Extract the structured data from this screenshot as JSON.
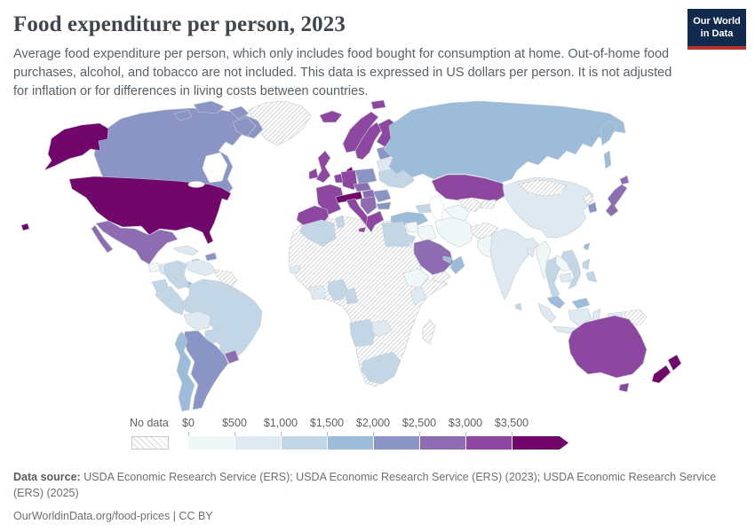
{
  "header": {
    "title": "Food expenditure per person, 2023",
    "subtitle": "Average food expenditure per person, which only includes food bought for consumption at home. Out-of-home food purchases, alcohol, and tobacco are not included. This data is expressed in US dollars per person. It is not adjusted for inflation or for differences in living costs between countries.",
    "logo": {
      "line1": "Our World",
      "line2": "in Data"
    }
  },
  "legend": {
    "no_data_label": "No data",
    "tick_labels": [
      "$0",
      "$500",
      "$1,000",
      "$1,500",
      "$2,000",
      "$2,500",
      "$3,000",
      "$3,500"
    ],
    "bin_ranges": [
      "$0–$500",
      "$500–$1,000",
      "$1,000–$1,500",
      "$1,500–$2,000",
      "$2,000–$2,500",
      "$2,500–$3,000",
      "$3,000–$3,500",
      "$3,500+"
    ],
    "bin_colors": [
      "#f0f7f7",
      "#dfe9f1",
      "#c2d6e6",
      "#9dbcda",
      "#8b95c5",
      "#8d6cb2",
      "#8d47a0",
      "#71066b"
    ]
  },
  "footer": {
    "source_label": "Data source:",
    "source_text": " USDA Economic Research Service (ERS); USDA Economic Research Service (ERS) (2023); USDA Economic Research Service (ERS) (2025)",
    "note": "OurWorldinData.org/food-prices | CC BY"
  },
  "chart_data": {
    "type": "choropleth",
    "title": "Food expenditure per person, 2023",
    "unit": "US dollars per person",
    "no_data_style": "gray diagonal hatch",
    "regions": {
      "united-states": "$3,500+",
      "canada": "$2,000–$2,500",
      "mexico": "$2,500–$3,000",
      "greenland": "no-data",
      "guatemala": "$0–$500",
      "honduras-nicaragua": "$500–$1,000",
      "costa-rica-panama": "$1,500–$2,000",
      "cuba": "$500–$1,000",
      "hispaniola": "$2,000–$2,500",
      "jamaica": "$1,000–$1,500",
      "colombia": "$1,000–$1,500",
      "venezuela": "$500–$1,000",
      "guyanas": "no-data",
      "ecuador": "$1,000–$1,500",
      "peru": "$1,000–$1,500",
      "brazil": "$1,000–$1,500",
      "bolivia": "$500–$1,000",
      "paraguay": "$1,000–$1,500",
      "uruguay": "$2,500–$3,000",
      "argentina": "$2,000–$2,500",
      "chile": "$1,500–$2,000",
      "iceland": "$3,000–$3,500",
      "svalbard": "$3,000–$3,500",
      "norway": "$3,000–$3,500",
      "sweden": "$3,000–$3,500",
      "finland": "$3,000–$3,500",
      "denmark": "$3,500+",
      "united-kingdom": "$3,000–$3,500",
      "ireland": "$3,000–$3,500",
      "france": "$3,000–$3,500",
      "germany": "$3,000–$3,500",
      "benelux": "$3,000–$3,500",
      "switzerland-austria": "$3,500+",
      "italy": "$3,000–$3,500",
      "spain-portugal": "$3,000–$3,500",
      "poland": "$2,000–$2,500",
      "czechia-slovakia": "$2,500–$3,000",
      "hungary": "$2,500–$3,000",
      "balkans": "$2,500–$3,000",
      "romania": "$2,000–$2,500",
      "bulgaria": "$2,000–$2,500",
      "greece": "$3,000–$3,500",
      "baltics": "$2,000–$2,500",
      "belarus": "$500–$1,000",
      "ukraine": "$1,000–$1,500",
      "russia": "$1,500–$2,000",
      "kazakhstan": "$3,000–$3,500",
      "caucasus": "$1,000–$1,500",
      "turkey": "$1,500–$2,000",
      "syria": "$0–$500",
      "iraq": "$0–$500",
      "israel": "$3,500+",
      "jordan": "$1,000–$1,500",
      "saudi-arabia": "$2,500–$3,000",
      "yemen": "no-data",
      "oman": "$1,500–$2,000",
      "uae": "$1,500–$2,000",
      "iran": "$0–$500",
      "afghanistan": "no-data",
      "pakistan": "$0–$500",
      "turkmenistan": "$0–$500",
      "uzbekistan": "no-data",
      "tajikistan-kyrgyzstan": "no-data",
      "india": "$500–$1,000",
      "bangladesh": "$500–$1,000",
      "sri-lanka": "$1,000–$1,500",
      "china": "$500–$1,000",
      "mongolia": "no-data",
      "north-korea": "no-data",
      "south-korea": "$2,000–$2,500",
      "japan": "$2,500–$3,000",
      "myanmar": "$0–$500",
      "thailand": "$1,000–$1,500",
      "laos": "$0–$500",
      "cambodia": "$500–$1,000",
      "vietnam": "$1,000–$1,500",
      "malaysia": "$1,500–$2,000",
      "indonesia": "$500–$1,000",
      "philippines": "$1,000–$1,500",
      "taiwan": "$1,500–$2,000",
      "papua-new-guinea": "no-data",
      "australia": "$3,000–$3,500",
      "new-zealand": "$3,500+",
      "africa-other": "no-data",
      "madagascar": "no-data",
      "algeria": "$1,000–$1,500",
      "tunisia": "$1,000–$1,500",
      "egypt": "$1,000–$1,500",
      "senegal": "$500–$1,000",
      "ghana-cote-divoire": "$500–$1,000",
      "nigeria": "$1,000–$1,500",
      "cameroon": "$1,000–$1,500",
      "angola": "$1,000–$1,500",
      "zambia": "$500–$1,000",
      "south-africa": "$1,000–$1,500",
      "kenya": "$500–$1,000",
      "ethiopia": "$0–$500"
    }
  }
}
